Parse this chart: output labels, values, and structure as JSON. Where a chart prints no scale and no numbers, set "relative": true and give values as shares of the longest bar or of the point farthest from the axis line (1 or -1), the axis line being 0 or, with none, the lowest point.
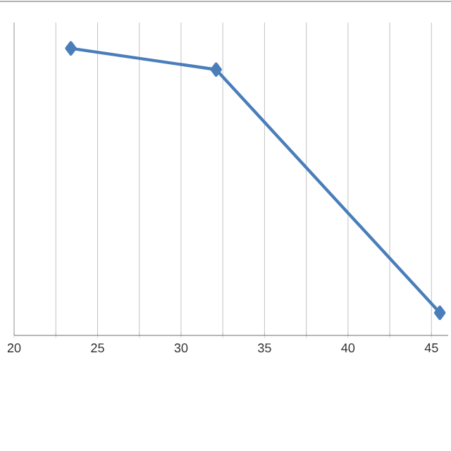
{
  "chart_data": {
    "type": "line",
    "relative": true,
    "x": [
      23.4,
      32.1,
      45.5
    ],
    "series": [
      {
        "color": "#4a7ebb",
        "values": [
          1,
          0.926,
          0.079
        ]
      }
    ],
    "xlim": [
      20,
      46
    ],
    "xticks": [
      20,
      {
        "value": 22.5,
        "label": null
      },
      25,
      {
        "value": 27.5,
        "label": null
      },
      30,
      {
        "value": 32.5,
        "label": null
      },
      35,
      {
        "value": 37.5,
        "label": null
      },
      40,
      {
        "value": 42.5,
        "label": null
      },
      45
    ],
    "grid": "x",
    "marker": "diamond",
    "line_style": "solid"
  }
}
